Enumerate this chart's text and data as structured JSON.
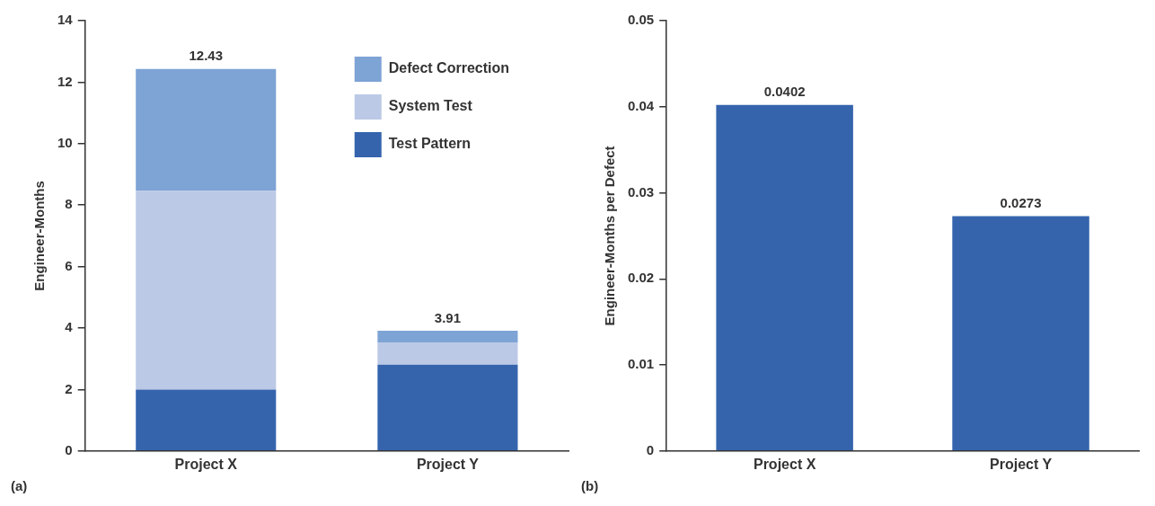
{
  "chart_data": [
    {
      "type": "bar",
      "stacked": true,
      "ylabel": "Engineer-Months",
      "categories": [
        "Project X",
        "Project Y"
      ],
      "series": [
        {
          "name": "Test Pattern",
          "color": "#3564ad",
          "values": [
            2.0,
            2.81
          ]
        },
        {
          "name": "System Test",
          "color": "#bbc9e6",
          "values": [
            6.47,
            0.71
          ]
        },
        {
          "name": "Defect Correction",
          "color": "#7ea3d5",
          "values": [
            3.96,
            0.39
          ]
        }
      ],
      "totals": [
        "12.43",
        "3.91"
      ],
      "ylim": [
        0,
        14
      ],
      "yticks": [
        0,
        2,
        4,
        6,
        8,
        10,
        12,
        14
      ],
      "grid": false,
      "legend": "top right",
      "annotations": [
        "(a)"
      ]
    },
    {
      "type": "bar",
      "ylabel": "Engineer-Months per Defect",
      "categories": [
        "Project X",
        "Project Y"
      ],
      "values": [
        0.0402,
        0.0273
      ],
      "color": "#3564ad",
      "data_labels": true,
      "ylim": [
        0,
        0.05
      ],
      "yticks": [
        0,
        0.01,
        0.02,
        0.03,
        0.04,
        0.05
      ],
      "grid": false,
      "legend": false,
      "annotations": [
        "(b)"
      ]
    }
  ]
}
